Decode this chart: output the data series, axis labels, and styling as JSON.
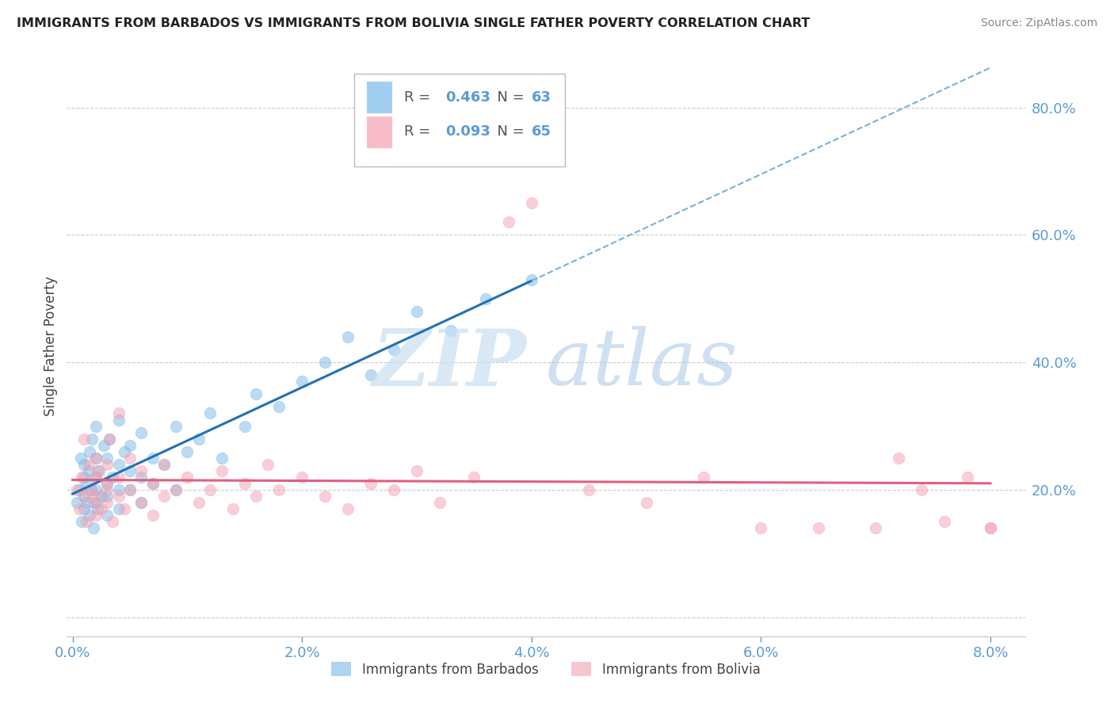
{
  "title": "IMMIGRANTS FROM BARBADOS VS IMMIGRANTS FROM BOLIVIA SINGLE FATHER POVERTY CORRELATION CHART",
  "source": "Source: ZipAtlas.com",
  "ylabel_left": "Single Father Poverty",
  "x_ticks": [
    0.0,
    0.02,
    0.04,
    0.06,
    0.08
  ],
  "x_tick_labels": [
    "0.0%",
    "2.0%",
    "4.0%",
    "6.0%",
    "8.0%"
  ],
  "y_ticks_right": [
    0.0,
    0.2,
    0.4,
    0.6,
    0.8
  ],
  "y_tick_labels_right": [
    "",
    "20.0%",
    "40.0%",
    "60.0%",
    "80.0%"
  ],
  "xlim": [
    -0.0005,
    0.083
  ],
  "ylim": [
    -0.03,
    0.88
  ],
  "barbados_color": "#7ab8e8",
  "bolivia_color": "#f4a0b0",
  "barbados_label": "Immigrants from Barbados",
  "bolivia_label": "Immigrants from Bolivia",
  "R_barbados": 0.463,
  "N_barbados": 63,
  "R_bolivia": 0.093,
  "N_bolivia": 65,
  "watermark_zip": "ZIP",
  "watermark_atlas": "atlas",
  "background_color": "#ffffff",
  "grid_color": "#cccccc",
  "axis_color": "#5b9bd5",
  "trend_blue_solid": "#2171b5",
  "trend_blue_dash": "#74b3d8",
  "trend_pink": "#e06080",
  "barbados_x": [
    0.0004,
    0.0006,
    0.0007,
    0.0008,
    0.001,
    0.001,
    0.001,
    0.001,
    0.0012,
    0.0013,
    0.0014,
    0.0015,
    0.0015,
    0.0016,
    0.0017,
    0.0018,
    0.002,
    0.002,
    0.002,
    0.002,
    0.002,
    0.0022,
    0.0023,
    0.0025,
    0.0027,
    0.003,
    0.003,
    0.003,
    0.003,
    0.0032,
    0.0035,
    0.004,
    0.004,
    0.004,
    0.004,
    0.0045,
    0.005,
    0.005,
    0.005,
    0.006,
    0.006,
    0.006,
    0.007,
    0.007,
    0.008,
    0.009,
    0.009,
    0.01,
    0.011,
    0.012,
    0.013,
    0.015,
    0.016,
    0.018,
    0.02,
    0.022,
    0.024,
    0.026,
    0.028,
    0.03,
    0.033,
    0.036,
    0.04
  ],
  "barbados_y": [
    0.18,
    0.2,
    0.25,
    0.15,
    0.22,
    0.19,
    0.24,
    0.17,
    0.21,
    0.18,
    0.23,
    0.16,
    0.26,
    0.2,
    0.28,
    0.14,
    0.22,
    0.18,
    0.25,
    0.2,
    0.3,
    0.17,
    0.23,
    0.19,
    0.27,
    0.16,
    0.21,
    0.25,
    0.19,
    0.28,
    0.22,
    0.17,
    0.24,
    0.2,
    0.31,
    0.26,
    0.2,
    0.23,
    0.27,
    0.18,
    0.22,
    0.29,
    0.25,
    0.21,
    0.24,
    0.2,
    0.3,
    0.26,
    0.28,
    0.32,
    0.25,
    0.3,
    0.35,
    0.33,
    0.37,
    0.4,
    0.44,
    0.38,
    0.42,
    0.48,
    0.45,
    0.5,
    0.53
  ],
  "bolivia_x": [
    0.0004,
    0.0006,
    0.0008,
    0.001,
    0.001,
    0.0012,
    0.0014,
    0.0016,
    0.0018,
    0.002,
    0.002,
    0.002,
    0.002,
    0.0022,
    0.0025,
    0.003,
    0.003,
    0.003,
    0.003,
    0.0032,
    0.0035,
    0.004,
    0.004,
    0.004,
    0.0045,
    0.005,
    0.005,
    0.006,
    0.006,
    0.007,
    0.007,
    0.008,
    0.008,
    0.009,
    0.01,
    0.011,
    0.012,
    0.013,
    0.014,
    0.015,
    0.016,
    0.017,
    0.018,
    0.02,
    0.022,
    0.024,
    0.026,
    0.028,
    0.03,
    0.032,
    0.035,
    0.038,
    0.04,
    0.045,
    0.05,
    0.055,
    0.06,
    0.065,
    0.07,
    0.072,
    0.074,
    0.076,
    0.078,
    0.08,
    0.08
  ],
  "bolivia_y": [
    0.2,
    0.17,
    0.22,
    0.19,
    0.28,
    0.15,
    0.24,
    0.2,
    0.18,
    0.22,
    0.16,
    0.25,
    0.19,
    0.23,
    0.17,
    0.21,
    0.18,
    0.24,
    0.2,
    0.28,
    0.15,
    0.22,
    0.19,
    0.32,
    0.17,
    0.2,
    0.25,
    0.18,
    0.23,
    0.16,
    0.21,
    0.19,
    0.24,
    0.2,
    0.22,
    0.18,
    0.2,
    0.23,
    0.17,
    0.21,
    0.19,
    0.24,
    0.2,
    0.22,
    0.19,
    0.17,
    0.21,
    0.2,
    0.23,
    0.18,
    0.22,
    0.62,
    0.65,
    0.2,
    0.18,
    0.22,
    0.14,
    0.14,
    0.14,
    0.25,
    0.2,
    0.15,
    0.22,
    0.14,
    0.14
  ]
}
